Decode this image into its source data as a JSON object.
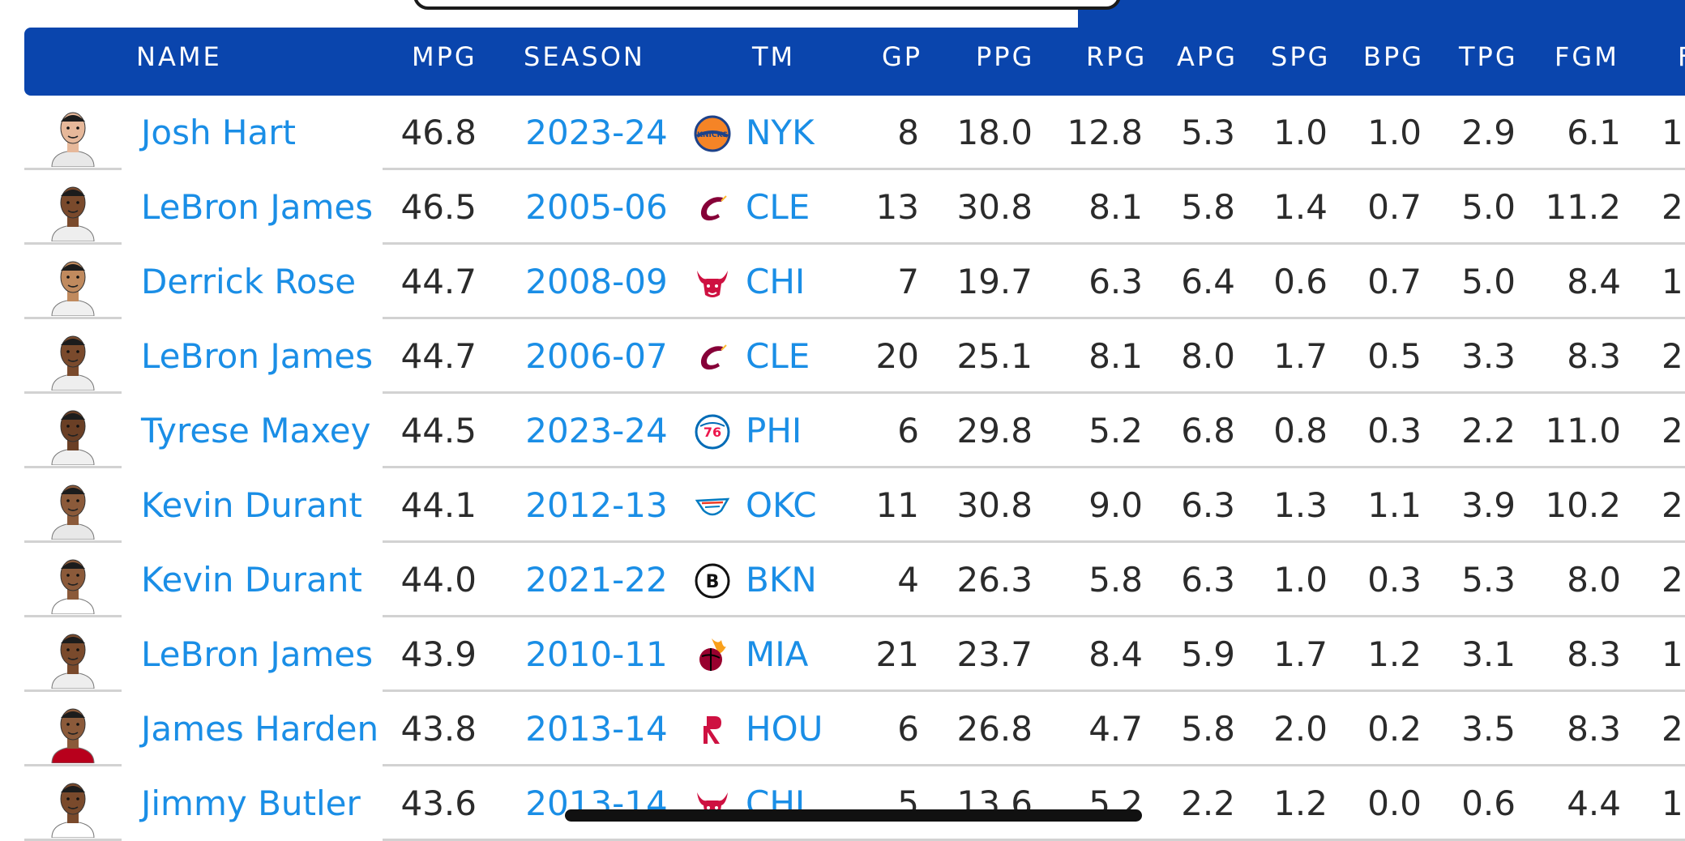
{
  "columns": {
    "name": "NAME",
    "mpg": "MPG",
    "season": "SEASON",
    "tm": "TM",
    "gp": "GP",
    "ppg": "PPG",
    "rpg": "RPG",
    "apg": "APG",
    "spg": "SPG",
    "bpg": "BPG",
    "tpg": "TPG",
    "fgm": "FGM",
    "next": "F"
  },
  "rows": [
    {
      "name": "Josh Hart",
      "mpg": "46.8",
      "season": "2023-24",
      "tm": "NYK",
      "logo": "knicks-logo",
      "gp": "8",
      "ppg": "18.0",
      "rpg": "12.8",
      "apg": "5.3",
      "spg": "1.0",
      "bpg": "1.0",
      "tpg": "2.9",
      "fgm": "6.1",
      "next": "1"
    },
    {
      "name": "LeBron James",
      "mpg": "46.5",
      "season": "2005-06",
      "tm": "CLE",
      "logo": "cavaliers-logo",
      "gp": "13",
      "ppg": "30.8",
      "rpg": "8.1",
      "apg": "5.8",
      "spg": "1.4",
      "bpg": "0.7",
      "tpg": "5.0",
      "fgm": "11.2",
      "next": "2"
    },
    {
      "name": "Derrick Rose",
      "mpg": "44.7",
      "season": "2008-09",
      "tm": "CHI",
      "logo": "bulls-logo",
      "gp": "7",
      "ppg": "19.7",
      "rpg": "6.3",
      "apg": "6.4",
      "spg": "0.6",
      "bpg": "0.7",
      "tpg": "5.0",
      "fgm": "8.4",
      "next": "1"
    },
    {
      "name": "LeBron James",
      "mpg": "44.7",
      "season": "2006-07",
      "tm": "CLE",
      "logo": "cavaliers-logo",
      "gp": "20",
      "ppg": "25.1",
      "rpg": "8.1",
      "apg": "8.0",
      "spg": "1.7",
      "bpg": "0.5",
      "tpg": "3.3",
      "fgm": "8.3",
      "next": "2"
    },
    {
      "name": "Tyrese Maxey",
      "mpg": "44.5",
      "season": "2023-24",
      "tm": "PHI",
      "logo": "76ers-logo",
      "gp": "6",
      "ppg": "29.8",
      "rpg": "5.2",
      "apg": "6.8",
      "spg": "0.8",
      "bpg": "0.3",
      "tpg": "2.2",
      "fgm": "11.0",
      "next": "2"
    },
    {
      "name": "Kevin Durant",
      "mpg": "44.1",
      "season": "2012-13",
      "tm": "OKC",
      "logo": "thunder-logo",
      "gp": "11",
      "ppg": "30.8",
      "rpg": "9.0",
      "apg": "6.3",
      "spg": "1.3",
      "bpg": "1.1",
      "tpg": "3.9",
      "fgm": "10.2",
      "next": "2"
    },
    {
      "name": "Kevin Durant",
      "mpg": "44.0",
      "season": "2021-22",
      "tm": "BKN",
      "logo": "nets-logo",
      "gp": "4",
      "ppg": "26.3",
      "rpg": "5.8",
      "apg": "6.3",
      "spg": "1.0",
      "bpg": "0.3",
      "tpg": "5.3",
      "fgm": "8.0",
      "next": "2"
    },
    {
      "name": "LeBron James",
      "mpg": "43.9",
      "season": "2010-11",
      "tm": "MIA",
      "logo": "heat-logo",
      "gp": "21",
      "ppg": "23.7",
      "rpg": "8.4",
      "apg": "5.9",
      "spg": "1.7",
      "bpg": "1.2",
      "tpg": "3.1",
      "fgm": "8.3",
      "next": "1"
    },
    {
      "name": "James Harden",
      "mpg": "43.8",
      "season": "2013-14",
      "tm": "HOU",
      "logo": "rockets-logo",
      "gp": "6",
      "ppg": "26.8",
      "rpg": "4.7",
      "apg": "5.8",
      "spg": "2.0",
      "bpg": "0.2",
      "tpg": "3.5",
      "fgm": "8.3",
      "next": "2"
    },
    {
      "name": "Jimmy Butler",
      "mpg": "43.6",
      "season": "2013-14",
      "tm": "CHI",
      "logo": "bulls-logo",
      "gp": "5",
      "ppg": "13.6",
      "rpg": "5.2",
      "apg": "2.2",
      "spg": "1.2",
      "bpg": "0.0",
      "tpg": "0.6",
      "fgm": "4.4",
      "next": "1"
    }
  ],
  "colors": {
    "header_bg": "#0a45ad",
    "link": "#1a8ee6",
    "text": "#2b2b2b",
    "separator": "#d2d2d2"
  }
}
